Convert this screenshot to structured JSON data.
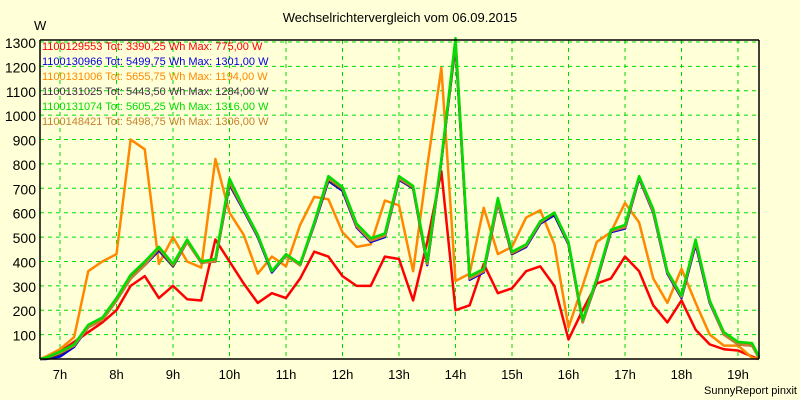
{
  "chart_data": {
    "type": "line",
    "title": "Wechselrichtervergleich vom 06.09.2015",
    "xlabel": "",
    "ylabel": "W",
    "ylim": [
      0,
      1300
    ],
    "xlim": [
      6.65,
      19.42
    ],
    "grid": true,
    "legend_position": "top-left inside",
    "y_ticks": [
      100,
      200,
      300,
      400,
      500,
      600,
      700,
      800,
      900,
      1000,
      1100,
      1200,
      1300
    ],
    "x_ticks": [
      "7h",
      "8h",
      "9h",
      "10h",
      "11h",
      "12h",
      "13h",
      "14h",
      "15h",
      "16h",
      "17h",
      "18h",
      "19h"
    ],
    "x": [
      6.75,
      7.0,
      7.25,
      7.5,
      7.75,
      8.0,
      8.25,
      8.5,
      8.75,
      9.0,
      9.25,
      9.5,
      9.75,
      10.0,
      10.25,
      10.5,
      10.75,
      11.0,
      11.25,
      11.5,
      11.75,
      12.0,
      12.25,
      12.5,
      12.75,
      13.0,
      13.25,
      13.5,
      13.75,
      14.0,
      14.25,
      14.5,
      14.75,
      15.0,
      15.25,
      15.5,
      15.75,
      16.0,
      16.25,
      16.5,
      16.75,
      17.0,
      17.25,
      17.5,
      17.75,
      18.0,
      18.25,
      18.5,
      18.75,
      19.0,
      19.25,
      19.42
    ],
    "series": [
      {
        "name": "1100129553",
        "total": "3390,25 Wh",
        "max": "775,00 W",
        "color": "#ff0000",
        "values": [
          5,
          30,
          70,
          110,
          150,
          200,
          300,
          340,
          250,
          300,
          245,
          240,
          490,
          400,
          310,
          230,
          270,
          250,
          330,
          440,
          420,
          340,
          300,
          300,
          420,
          410,
          240,
          480,
          770,
          200,
          220,
          390,
          270,
          290,
          360,
          380,
          300,
          80,
          200,
          310,
          330,
          420,
          360,
          220,
          150,
          240,
          120,
          60,
          40,
          35,
          10,
          0
        ]
      },
      {
        "name": "1100130966",
        "total": "5499,75 Wh",
        "max": "1301,00 W",
        "color": "#0000e0",
        "values": [
          0,
          10,
          50,
          130,
          160,
          240,
          330,
          385,
          445,
          380,
          480,
          395,
          400,
          715,
          610,
          500,
          355,
          425,
          385,
          550,
          730,
          690,
          540,
          480,
          500,
          735,
          700,
          385,
          810,
          1301,
          325,
          355,
          640,
          430,
          460,
          555,
          590,
          470,
          150,
          320,
          520,
          535,
          740,
          600,
          350,
          250,
          470,
          230,
          100,
          60,
          55,
          5
        ]
      },
      {
        "name": "1100131006",
        "total": "5655,75 Wh",
        "max": "1194,00 W",
        "color": "#ff8800",
        "values": [
          10,
          40,
          90,
          360,
          400,
          430,
          900,
          860,
          390,
          500,
          400,
          375,
          820,
          600,
          510,
          350,
          420,
          380,
          550,
          665,
          655,
          520,
          460,
          470,
          650,
          630,
          360,
          790,
          1194,
          320,
          350,
          620,
          430,
          460,
          580,
          610,
          470,
          130,
          300,
          480,
          520,
          640,
          560,
          330,
          230,
          370,
          230,
          100,
          55,
          55,
          5,
          0
        ]
      },
      {
        "name": "1100131025",
        "total": "5443,50 Wh",
        "max": "1284,00 W",
        "color": "#403040",
        "values": [
          2,
          20,
          55,
          135,
          165,
          245,
          335,
          390,
          450,
          380,
          485,
          395,
          400,
          720,
          615,
          505,
          360,
          425,
          385,
          555,
          735,
          695,
          545,
          485,
          505,
          740,
          700,
          390,
          815,
          1284,
          330,
          360,
          645,
          430,
          465,
          560,
          595,
          475,
          155,
          320,
          525,
          540,
          745,
          605,
          355,
          255,
          480,
          235,
          105,
          65,
          60,
          5
        ]
      },
      {
        "name": "1100131074",
        "total": "5605,25 Wh",
        "max": "1316,00 W",
        "color": "#00dd00",
        "values": [
          5,
          30,
          60,
          140,
          170,
          250,
          345,
          400,
          460,
          390,
          490,
          400,
          410,
          740,
          620,
          510,
          360,
          430,
          390,
          560,
          750,
          705,
          555,
          495,
          515,
          750,
          710,
          400,
          820,
          1316,
          340,
          370,
          660,
          440,
          470,
          565,
          600,
          480,
          160,
          330,
          530,
          550,
          750,
          615,
          360,
          260,
          490,
          240,
          110,
          70,
          65,
          10
        ]
      },
      {
        "name": "1100148421",
        "total": "5498,75 Wh",
        "max": "1306,00 W",
        "color": "#c8802c",
        "values": [
          5,
          25,
          55,
          130,
          160,
          240,
          330,
          385,
          455,
          385,
          480,
          395,
          400,
          725,
          615,
          505,
          360,
          425,
          385,
          555,
          740,
          700,
          545,
          485,
          505,
          740,
          705,
          390,
          815,
          1306,
          330,
          360,
          645,
          435,
          465,
          560,
          600,
          475,
          150,
          325,
          525,
          540,
          745,
          605,
          355,
          255,
          480,
          235,
          100,
          60,
          55,
          5
        ]
      }
    ]
  },
  "header": {
    "title": "Wechselrichtervergleich vom 06.09.2015",
    "y_unit": "W"
  },
  "legend": [
    {
      "text": "1100129553 Tot: 3390,25 Wh Max: 775,00 W",
      "color": "#ff0000"
    },
    {
      "text": "1100130966 Tot: 5499,75 Wh Max: 1301,00 W",
      "color": "#0000e0"
    },
    {
      "text": "1100131006 Tot: 5655,75 Wh Max: 1194,00 W",
      "color": "#ff8800"
    },
    {
      "text": "1100131025 Tot: 5443,50 Wh Max: 1284,00 W",
      "color": "#403040"
    },
    {
      "text": "1100131074 Tot: 5605,25 Wh Max: 1316,00 W",
      "color": "#00dd00"
    },
    {
      "text": "1100148421 Tot: 5498,75 Wh Max: 1306,00 W",
      "color": "#c8802c"
    }
  ],
  "footer": {
    "text": "SunnyReport pinxit"
  },
  "colors": {
    "background": "#ffffd8",
    "grid": "#00dd00",
    "axis": "#000000"
  }
}
